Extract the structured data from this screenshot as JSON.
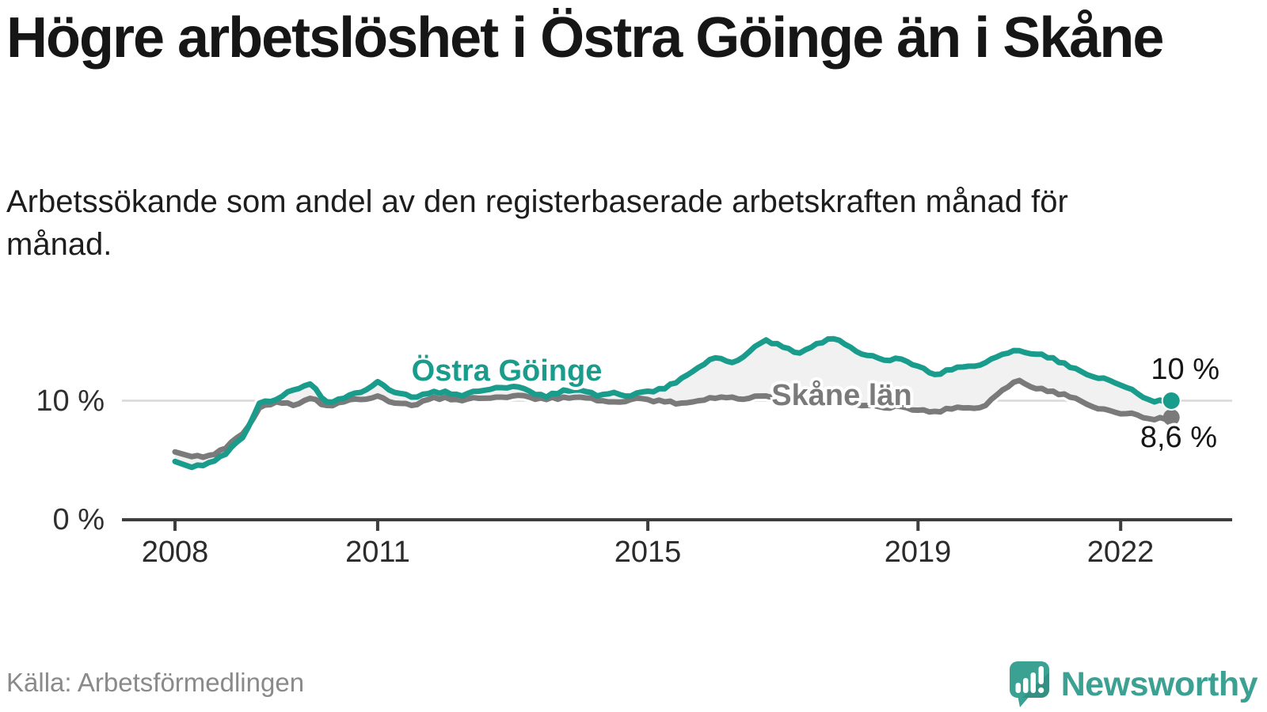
{
  "header": {
    "title": "Högre arbetslöshet i Östra Göinge än i Skåne",
    "subtitle": "Arbetssökande som andel av den registerbaserade arbetskraften månad för månad."
  },
  "footer": {
    "source": "Källa: Arbetsförmedlingen",
    "brand": "Newsworthy"
  },
  "colors": {
    "ostra_goinge": "#1a9c8c",
    "skane": "#7a7a7a",
    "band_fill": "#f1f1f1",
    "gridline": "#d9d9d9",
    "axis": "#3d3d3d",
    "text": "#161616",
    "source_text": "#8a8a8a",
    "brand_teal": "#3ba192"
  },
  "chart_data": {
    "type": "line",
    "x_start": 2008,
    "x_step": 0.25,
    "ylim": [
      0,
      16.5
    ],
    "grid": "single horizontal gridline at 10 %",
    "legend": "inline labels on lines",
    "x_ticks": [
      {
        "year": 2008,
        "label": "2008"
      },
      {
        "year": 2011,
        "label": "2011"
      },
      {
        "year": 2015,
        "label": "2015"
      },
      {
        "year": 2019,
        "label": "2019"
      },
      {
        "year": 2022,
        "label": "2022"
      }
    ],
    "y_ticks": [
      {
        "value": 10,
        "label": "10 %"
      },
      {
        "value": 0,
        "label": "0 %"
      }
    ],
    "series": [
      {
        "name": "Östra Göinge",
        "color": "#1a9c8c",
        "end_label": "10 %",
        "end_value": 10.0,
        "values": [
          4.9,
          4.4,
          4.8,
          5.5,
          6.9,
          9.8,
          10.1,
          10.9,
          11.4,
          9.9,
          10.2,
          10.7,
          11.6,
          10.7,
          10.3,
          10.6,
          10.8,
          10.4,
          10.8,
          11.1,
          11.2,
          10.8,
          10.3,
          10.9,
          10.9,
          10.4,
          10.7,
          10.4,
          10.8,
          11.0,
          11.9,
          12.8,
          13.6,
          13.2,
          14.1,
          15.1,
          14.5,
          14.0,
          14.8,
          15.2,
          14.5,
          13.8,
          13.4,
          13.5,
          12.9,
          12.2,
          12.6,
          12.9,
          13.2,
          13.9,
          14.2,
          13.9,
          13.6,
          12.8,
          12.2,
          11.9,
          11.3,
          10.6,
          9.9,
          10.0
        ]
      },
      {
        "name": "Skåne län",
        "color": "#7a7a7a",
        "end_label": "8,6 %",
        "end_value": 8.6,
        "values": [
          5.7,
          5.3,
          5.4,
          6.0,
          7.2,
          9.4,
          9.9,
          9.6,
          10.2,
          9.6,
          9.9,
          10.1,
          10.4,
          9.8,
          9.6,
          10.1,
          10.3,
          10.0,
          10.2,
          10.3,
          10.4,
          10.3,
          10.1,
          10.3,
          10.3,
          10.0,
          9.9,
          10.1,
          10.1,
          9.9,
          9.8,
          10.0,
          10.2,
          10.3,
          10.2,
          10.4,
          10.3,
          10.1,
          9.9,
          10.1,
          9.9,
          9.6,
          9.4,
          9.5,
          9.2,
          9.1,
          9.3,
          9.4,
          9.6,
          10.9,
          11.7,
          11.0,
          10.8,
          10.3,
          9.7,
          9.3,
          8.9,
          8.8,
          8.4,
          8.6
        ]
      }
    ]
  }
}
